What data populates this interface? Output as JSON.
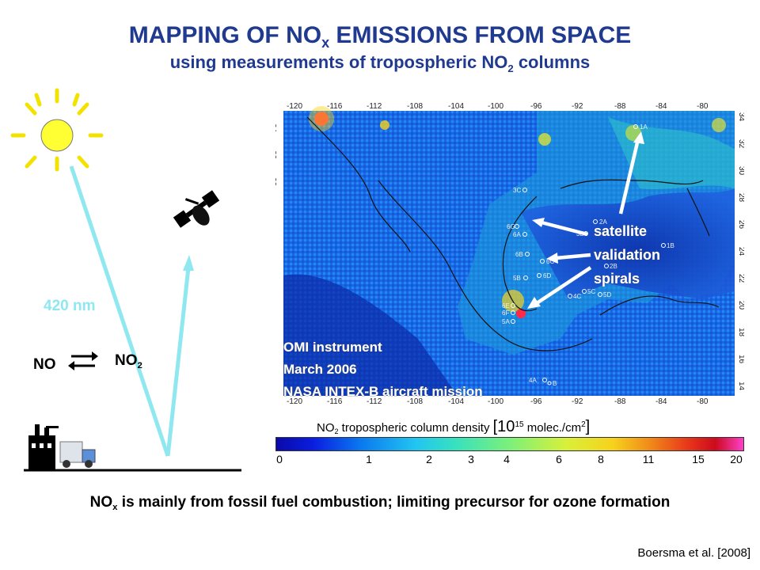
{
  "title": {
    "line1_before_sub": "MAPPING OF NO",
    "line1_sub": "x",
    "line1_after_sub": " EMISSIONS FROM SPACE",
    "line2_before_sub": "using measurements of tropospheric NO",
    "line2_sub": "2",
    "line2_after_sub": " columns"
  },
  "left_diagram": {
    "wavelength_label": "420 nm",
    "no_label": "NO",
    "no2_label_base": "NO",
    "no2_label_sub": "2"
  },
  "map": {
    "lon_ticks": [
      "-120",
      "-116",
      "-112",
      "-108",
      "-104",
      "-100",
      "-96",
      "-92",
      "-88",
      "-84",
      "-80"
    ],
    "lat_ticks": [
      "34",
      "32",
      "30",
      "28",
      "26",
      "24",
      "22",
      "20",
      "18",
      "16",
      "14"
    ],
    "overlay_lines": [
      "OMI instrument",
      "March 2006",
      "NASA INTEX-B aircraft mission"
    ],
    "validation_label": [
      "satellite",
      "validation",
      "spirals"
    ],
    "spiral_sites": [
      "1A",
      "3C",
      "2A",
      "6G",
      "3B",
      "6A",
      "1B",
      "6B",
      "6C",
      "2B",
      "6D",
      "5B",
      "5C",
      "4C",
      "5D",
      "6E",
      "6F",
      "5A",
      "4A",
      "B"
    ]
  },
  "colorbar": {
    "title_base": "NO",
    "title_sub": "2",
    "title_rest": " tropospheric column density ",
    "title_units": "[10",
    "title_units_sup": "15",
    "title_units_rest": " molec./cm",
    "title_units_sup2": "2",
    "title_units_end": "]",
    "tick_labels": [
      "0",
      "1",
      "2",
      "3",
      "4",
      "6",
      "8",
      "11",
      "15",
      "20"
    ]
  },
  "caption": {
    "before_sub": "NO",
    "sub": "x",
    "after_sub": " is mainly from fossil fuel combustion; limiting precursor for ozone formation"
  },
  "credit": "Boersma et al. [2008]"
}
